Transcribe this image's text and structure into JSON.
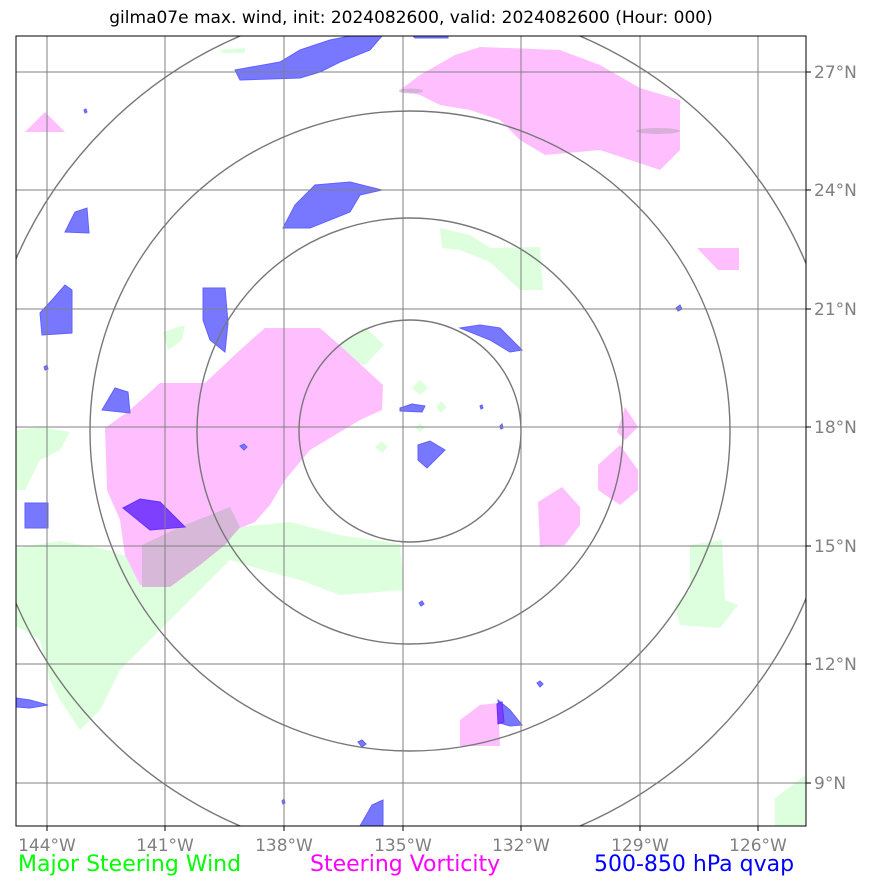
{
  "title": "gilma07e max. wind, init: 2024082600, valid: 2024082600 (Hour: 000)",
  "lat_labels": [
    "27°N",
    "24°N",
    "21°N",
    "18°N",
    "15°N",
    "12°N",
    "9°N"
  ],
  "lon_labels": [
    "144°W",
    "141°W",
    "138°W",
    "135°W",
    "132°W",
    "129°W",
    "126°W"
  ],
  "legend": {
    "green": "Major Steering Wind",
    "magenta": "Steering Vorticity",
    "blue": "500-850 hPa qvap"
  },
  "colors": {
    "green_fill": "#ddffdd",
    "magenta_fill": "#ffbfff",
    "blue_fill": "#7878ff",
    "violet_fill": "#7f3fff",
    "overlap_fill": "#d8b8d8",
    "grid": "#808080",
    "rings": "#777777"
  }
}
